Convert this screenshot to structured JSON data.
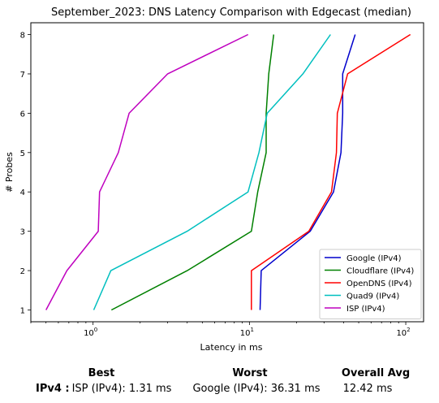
{
  "chart_data": {
    "type": "line",
    "title": "September_2023: DNS Latency Comparison with Edgecast (median)",
    "xlabel": "Latency in ms",
    "ylabel": "# Probes",
    "xscale": "log",
    "xlim": [
      0.4,
      130
    ],
    "ylim": [
      0.7,
      8.3
    ],
    "xticks": [
      {
        "value": 1,
        "base": "10",
        "exp": "0"
      },
      {
        "value": 10,
        "base": "10",
        "exp": "1"
      },
      {
        "value": 100,
        "base": "10",
        "exp": "2"
      }
    ],
    "yticks": [
      "1",
      "2",
      "3",
      "4",
      "5",
      "6",
      "7",
      "8"
    ],
    "legend_position": "lower-right",
    "series": [
      {
        "name": "Google (IPv4)",
        "color": "#0000cc",
        "x": [
          11.7,
          11.9,
          24.5,
          34.5,
          38.5,
          39.5,
          39.5,
          47.5
        ],
        "y": [
          1,
          2,
          3,
          4,
          5,
          6,
          7,
          8
        ]
      },
      {
        "name": "Cloudflare (IPv4)",
        "color": "#008000",
        "x": [
          1.31,
          4.0,
          10.3,
          11.3,
          12.8,
          12.8,
          13.3,
          14.3
        ],
        "y": [
          1,
          2,
          3,
          4,
          5,
          6,
          7,
          8
        ]
      },
      {
        "name": "OpenDNS (IPv4)",
        "color": "#ff0000",
        "x": [
          10.3,
          10.3,
          24.0,
          33.5,
          36.0,
          36.5,
          42.5,
          107.0
        ],
        "y": [
          1,
          2,
          3,
          4,
          5,
          6,
          7,
          8
        ]
      },
      {
        "name": "Quad9 (IPv4)",
        "color": "#00bfbf",
        "x": [
          1.01,
          1.3,
          4.0,
          9.8,
          11.5,
          13.0,
          22.0,
          33.0
        ],
        "y": [
          1,
          2,
          3,
          4,
          5,
          6,
          7,
          8
        ]
      },
      {
        "name": "ISP (IPv4)",
        "color": "#bf00bf",
        "x": [
          0.5,
          0.68,
          1.08,
          1.1,
          1.45,
          1.7,
          3.0,
          9.8
        ],
        "y": [
          1,
          2,
          3,
          4,
          5,
          6,
          7,
          8
        ]
      }
    ]
  },
  "stats": {
    "best_header": "Best",
    "worst_header": "Worst",
    "avg_header": "Overall Avg",
    "row_label": "IPv4 :",
    "best_value": "ISP (IPv4): 1.31 ms",
    "worst_value": "Google (IPv4): 36.31 ms",
    "avg_value": "12.42 ms"
  }
}
